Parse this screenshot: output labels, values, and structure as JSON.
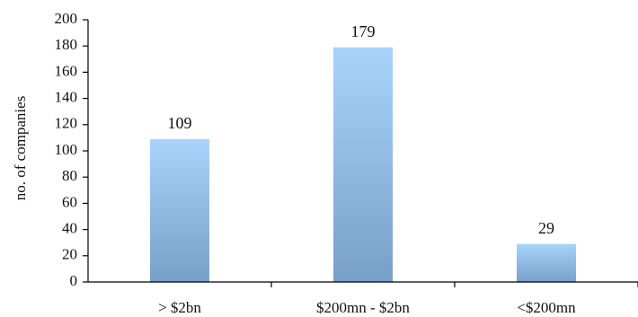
{
  "chart_data": {
    "type": "bar",
    "title": "",
    "xlabel": "",
    "ylabel": "no. of companies",
    "categories": [
      "> $2bn",
      "$200mn - $2bn",
      "<$200mn"
    ],
    "values": [
      109,
      179,
      29
    ],
    "ylim": [
      0,
      200
    ],
    "yticks": [
      0,
      20,
      40,
      60,
      80,
      100,
      120,
      140,
      160,
      180,
      200
    ],
    "grid": false,
    "legend": "none",
    "bar_gradient_top": "#a8d4fb",
    "bar_gradient_bottom": "#78a0c8",
    "axis_color": "#000000"
  }
}
